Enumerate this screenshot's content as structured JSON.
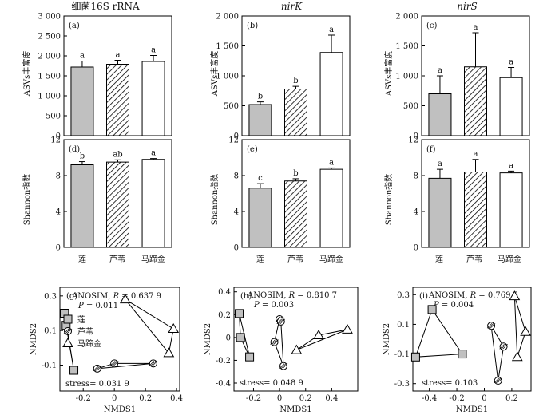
{
  "columns": [
    {
      "title": "细菌16S rRNA",
      "italic": false
    },
    {
      "title": "nirK",
      "italic": true
    },
    {
      "title": "nirS",
      "italic": true
    }
  ],
  "row_ylabels": [
    "ASVs丰富度",
    "Shannon指数"
  ],
  "group_labels": [
    "莲",
    "芦苇",
    "马蹄金"
  ],
  "colors": {
    "lotus_fill": "#c0c0c0",
    "other_fill": "#ffffff",
    "stroke": "#000000"
  },
  "chart_data": [
    {
      "id": "a",
      "panel_label": "(a)",
      "type": "bar",
      "categories": [
        "莲",
        "芦苇",
        "马蹄金"
      ],
      "values": [
        1720,
        1790,
        1860
      ],
      "errors": [
        150,
        100,
        150
      ],
      "letters": [
        "a",
        "a",
        "a"
      ],
      "ylim": [
        0,
        3000
      ],
      "yticks": [
        0,
        500,
        1000,
        1500,
        2000,
        2500,
        3000
      ],
      "yticklabels": [
        "0",
        "500",
        "1 000",
        "1 500",
        "2 000",
        "2 500",
        "3 000"
      ]
    },
    {
      "id": "b",
      "panel_label": "(b)",
      "type": "bar",
      "categories": [
        "莲",
        "芦苇",
        "马蹄金"
      ],
      "values": [
        520,
        780,
        1390
      ],
      "errors": [
        45,
        45,
        290
      ],
      "letters": [
        "b",
        "b",
        "a"
      ],
      "ylim": [
        0,
        2000
      ],
      "yticks": [
        0,
        500,
        1000,
        1500,
        2000
      ],
      "yticklabels": [
        "0",
        "500",
        "1 000",
        "1 500",
        "2 000"
      ]
    },
    {
      "id": "c",
      "panel_label": "(c)",
      "type": "bar",
      "categories": [
        "莲",
        "芦苇",
        "马蹄金"
      ],
      "values": [
        700,
        1150,
        970
      ],
      "errors": [
        300,
        570,
        170
      ],
      "letters": [
        "a",
        "a",
        "a"
      ],
      "ylim": [
        0,
        2000
      ],
      "yticks": [
        0,
        500,
        1000,
        1500,
        2000
      ],
      "yticklabels": [
        "0",
        "500",
        "1 000",
        "1 500",
        "2 000"
      ]
    },
    {
      "id": "d",
      "panel_label": "(d)",
      "type": "bar",
      "categories": [
        "莲",
        "芦苇",
        "马蹄金"
      ],
      "values": [
        9.2,
        9.5,
        9.8
      ],
      "errors": [
        0.35,
        0.25,
        0.1
      ],
      "letters": [
        "b",
        "ab",
        "a"
      ],
      "ylim": [
        0,
        12
      ],
      "yticks": [
        0,
        4,
        8,
        12
      ],
      "yticklabels": [
        "0",
        "4",
        "8",
        "12"
      ]
    },
    {
      "id": "e",
      "panel_label": "(e)",
      "type": "bar",
      "categories": [
        "莲",
        "芦苇",
        "马蹄金"
      ],
      "values": [
        6.6,
        7.4,
        8.7
      ],
      "errors": [
        0.5,
        0.25,
        0.15
      ],
      "letters": [
        "c",
        "b",
        "a"
      ],
      "ylim": [
        0,
        12
      ],
      "yticks": [
        0,
        4,
        8,
        12
      ],
      "yticklabels": [
        "0",
        "4",
        "8",
        "12"
      ]
    },
    {
      "id": "f",
      "panel_label": "(f)",
      "type": "bar",
      "categories": [
        "莲",
        "芦苇",
        "马蹄金"
      ],
      "values": [
        7.7,
        8.4,
        8.3
      ],
      "errors": [
        1.0,
        1.4,
        0.2
      ],
      "letters": [
        "a",
        "a",
        "a"
      ],
      "ylim": [
        0,
        12
      ],
      "yticks": [
        0,
        4,
        8,
        12
      ],
      "yticklabels": [
        "0",
        "4",
        "8",
        "12"
      ]
    },
    {
      "id": "g",
      "panel_label": "(g)",
      "type": "scatter",
      "xlabel": "NMDS1",
      "ylabel": "NMDS2",
      "xlim": [
        -0.35,
        0.42
      ],
      "ylim": [
        -0.25,
        0.35
      ],
      "xticks": [
        -0.2,
        0,
        0.2,
        0.4
      ],
      "xticklabels": [
        "-0.2",
        "0",
        "0.2",
        "0.4"
      ],
      "yticks": [
        -0.1,
        0.1,
        0.3
      ],
      "yticklabels": [
        "-0.1",
        "0.1",
        "0.3"
      ],
      "anosim_prefix": "ANOSIM, ",
      "R_label": "R",
      "R_text": " = 0.637 9",
      "P_label": "P",
      "P_text": " = 0.011",
      "stress_text": "stress= 0.031 9",
      "legend": [
        "莲",
        "芦苇",
        "马蹄金"
      ],
      "series": [
        {
          "name": "莲",
          "marker": "square",
          "points": [
            [
              -0.32,
              0.2
            ],
            [
              -0.31,
              0.13
            ],
            [
              -0.26,
              -0.13
            ]
          ]
        },
        {
          "name": "芦苇",
          "marker": "circle",
          "points": [
            [
              -0.11,
              -0.12
            ],
            [
              0.0,
              -0.09
            ],
            [
              0.25,
              -0.09
            ]
          ]
        },
        {
          "name": "马蹄金",
          "marker": "triangle",
          "points": [
            [
              0.07,
              0.28
            ],
            [
              0.35,
              -0.03
            ],
            [
              0.38,
              0.11
            ]
          ]
        }
      ]
    },
    {
      "id": "h",
      "panel_label": "(h)",
      "type": "scatter",
      "xlabel": "NMDS1",
      "ylabel": "NMDS2",
      "xlim": [
        -0.35,
        0.6
      ],
      "ylim": [
        -0.47,
        0.44
      ],
      "xticks": [
        -0.2,
        0,
        0.2,
        0.4
      ],
      "xticklabels": [
        "-0.2",
        "0",
        "0.2",
        "0.4"
      ],
      "yticks": [
        -0.4,
        -0.2,
        0,
        0.2,
        0.4
      ],
      "yticklabels": [
        "-0.4",
        "-0.2",
        "0",
        "0.2",
        "0.4"
      ],
      "anosim_prefix": "ANOSIM, ",
      "R_label": "R",
      "R_text": " = 0.810 7",
      "P_label": "P",
      "P_text": " = 0.003",
      "stress_text": "stress= 0.048 9",
      "legend": [],
      "series": [
        {
          "name": "莲",
          "marker": "square",
          "points": [
            [
              -0.31,
              0.21
            ],
            [
              -0.3,
              0.0
            ],
            [
              -0.23,
              -0.17
            ]
          ]
        },
        {
          "name": "芦苇",
          "marker": "circle",
          "points": [
            [
              -0.04,
              -0.04
            ],
            [
              0.0,
              0.16
            ],
            [
              0.01,
              0.14
            ],
            [
              0.03,
              -0.25
            ]
          ]
        },
        {
          "name": "马蹄金",
          "marker": "triangle",
          "points": [
            [
              0.13,
              -0.11
            ],
            [
              0.3,
              0.02
            ],
            [
              0.52,
              0.07
            ]
          ]
        }
      ]
    },
    {
      "id": "i",
      "panel_label": "(i)",
      "type": "scatter",
      "xlabel": "NMDS1",
      "ylabel": "NMDS2",
      "xlim": [
        -0.52,
        0.34
      ],
      "ylim": [
        -0.35,
        0.35
      ],
      "xticks": [
        -0.4,
        -0.2,
        0,
        0.2
      ],
      "xticklabels": [
        "-0.4",
        "-0.2",
        "0",
        "0.2"
      ],
      "yticks": [
        -0.3,
        -0.1,
        0.1,
        0.3
      ],
      "yticklabels": [
        "-0.3",
        "-0.1",
        "0.1",
        "0.3"
      ],
      "anosim_prefix": "ANOSIM, ",
      "R_label": "R",
      "R_text": " = 0.769 5",
      "P_label": "P",
      "P_text": " = 0.004",
      "stress_text": "stress= 0.103",
      "legend": [],
      "series": [
        {
          "name": "莲",
          "marker": "square",
          "points": [
            [
              -0.5,
              -0.12
            ],
            [
              -0.38,
              0.2
            ],
            [
              -0.16,
              -0.1
            ]
          ]
        },
        {
          "name": "芦苇",
          "marker": "circle",
          "points": [
            [
              0.05,
              0.09
            ],
            [
              0.1,
              -0.28
            ],
            [
              0.14,
              -0.05
            ]
          ]
        },
        {
          "name": "马蹄金",
          "marker": "triangle",
          "points": [
            [
              0.22,
              0.29
            ],
            [
              0.24,
              -0.12
            ],
            [
              0.3,
              0.05
            ]
          ]
        }
      ]
    }
  ]
}
